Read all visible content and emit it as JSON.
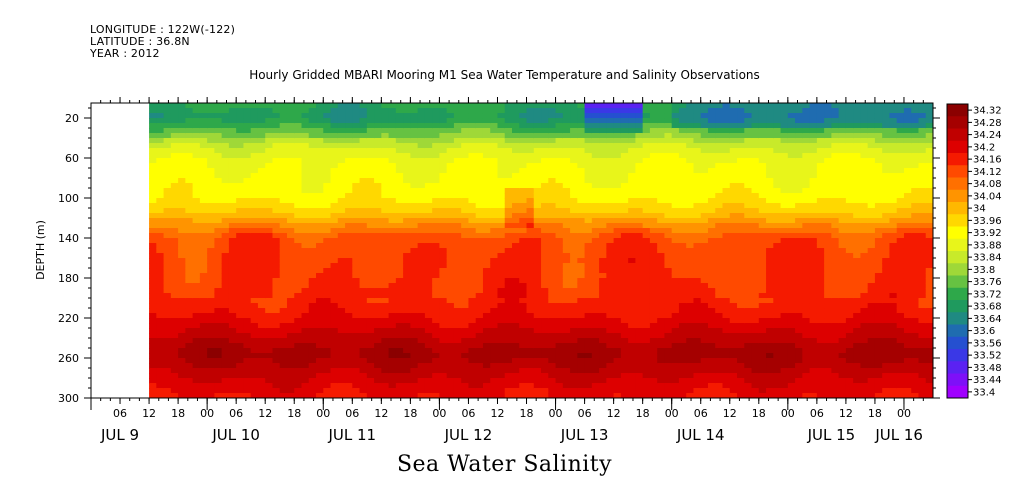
{
  "header": {
    "longitude": "LONGITUDE : 122W(-122)",
    "latitude": "LATITUDE : 36.8N",
    "year": "YEAR : 2012"
  },
  "chart_title": "Hourly Gridded MBARI Mooring M1 Sea Water Temperature and Salinity Observations",
  "bottom_title": "Sea Water Salinity",
  "chart_data": {
    "type": "heatmap",
    "title": "Hourly Gridded MBARI Mooring M1 Sea Water Temperature and Salinity Observations",
    "xlabel": "",
    "ylabel": "DEPTH (m)",
    "variable": "Sea Water Salinity",
    "x_range_hours": [
      0,
      174
    ],
    "y_range": [
      300,
      5
    ],
    "y_ticks": [
      20,
      60,
      100,
      140,
      180,
      220,
      260,
      300
    ],
    "x_hour_ticks": [
      {
        "h": 6,
        "label": "06"
      },
      {
        "h": 12,
        "label": "12"
      },
      {
        "h": 18,
        "label": "18"
      },
      {
        "h": 24,
        "label": "00"
      },
      {
        "h": 30,
        "label": "06"
      },
      {
        "h": 36,
        "label": "12"
      },
      {
        "h": 42,
        "label": "18"
      },
      {
        "h": 48,
        "label": "00"
      },
      {
        "h": 54,
        "label": "06"
      },
      {
        "h": 60,
        "label": "12"
      },
      {
        "h": 66,
        "label": "18"
      },
      {
        "h": 72,
        "label": "00"
      },
      {
        "h": 78,
        "label": "06"
      },
      {
        "h": 84,
        "label": "12"
      },
      {
        "h": 90,
        "label": "18"
      },
      {
        "h": 96,
        "label": "00"
      },
      {
        "h": 102,
        "label": "06"
      },
      {
        "h": 108,
        "label": "12"
      },
      {
        "h": 114,
        "label": "18"
      },
      {
        "h": 120,
        "label": "00"
      },
      {
        "h": 126,
        "label": "06"
      },
      {
        "h": 132,
        "label": "12"
      },
      {
        "h": 138,
        "label": "18"
      },
      {
        "h": 144,
        "label": "00"
      },
      {
        "h": 150,
        "label": "06"
      },
      {
        "h": 156,
        "label": "12"
      },
      {
        "h": 162,
        "label": "18"
      },
      {
        "h": 168,
        "label": "00"
      }
    ],
    "x_day_labels": [
      {
        "h": 6,
        "label": "JUL  9"
      },
      {
        "h": 30,
        "label": "JUL 10"
      },
      {
        "h": 54,
        "label": "JUL 11"
      },
      {
        "h": 78,
        "label": "JUL 12"
      },
      {
        "h": 102,
        "label": "JUL 13"
      },
      {
        "h": 126,
        "label": "JUL 14"
      },
      {
        "h": 153,
        "label": "JUL 15"
      },
      {
        "h": 167,
        "label": "JUL 16"
      }
    ],
    "data_start_hour": 12,
    "colorbar_levels": [
      34.32,
      34.28,
      34.24,
      34.2,
      34.16,
      34.12,
      34.08,
      34.04,
      34,
      33.96,
      33.92,
      33.88,
      33.84,
      33.8,
      33.76,
      33.72,
      33.68,
      33.64,
      33.6,
      33.56,
      33.52,
      33.48,
      33.44,
      33.4
    ],
    "colorbar_labels": [
      "34.32",
      "34.28",
      "34.24",
      "34.2",
      "34.16",
      "34.12",
      "34.08",
      "34.04",
      "34",
      "33.96",
      "33.92",
      "33.88",
      "33.84",
      "33.8",
      "33.76",
      "33.72",
      "33.68",
      "33.64",
      "33.6",
      "33.56",
      "33.52",
      "33.48",
      "33.44",
      "33.4"
    ],
    "colorbar_colors": [
      "#8b0000",
      "#a50000",
      "#c00000",
      "#dd0000",
      "#f51a00",
      "#ff4a00",
      "#ff7000",
      "#ff9400",
      "#ffb800",
      "#ffd800",
      "#ffff00",
      "#e8f51a",
      "#c8ea2a",
      "#9fd838",
      "#66c242",
      "#2ea84a",
      "#1f9a5e",
      "#1f8a82",
      "#1f6cb0",
      "#2550d0",
      "#3a38e6",
      "#5b22f2",
      "#7e10f8",
      "#a000ff"
    ],
    "depth_profile": [
      {
        "depth": 5,
        "value": 33.74
      },
      {
        "depth": 20,
        "value": 33.71
      },
      {
        "depth": 35,
        "value": 33.8
      },
      {
        "depth": 50,
        "value": 33.88
      },
      {
        "depth": 65,
        "value": 33.92
      },
      {
        "depth": 80,
        "value": 33.93
      },
      {
        "depth": 100,
        "value": 33.95
      },
      {
        "depth": 115,
        "value": 34.0
      },
      {
        "depth": 125,
        "value": 34.06
      },
      {
        "depth": 140,
        "value": 34.14
      },
      {
        "depth": 160,
        "value": 34.16
      },
      {
        "depth": 180,
        "value": 34.16
      },
      {
        "depth": 200,
        "value": 34.17
      },
      {
        "depth": 215,
        "value": 34.19
      },
      {
        "depth": 230,
        "value": 34.23
      },
      {
        "depth": 245,
        "value": 34.27
      },
      {
        "depth": 255,
        "value": 34.3
      },
      {
        "depth": 265,
        "value": 34.28
      },
      {
        "depth": 280,
        "value": 34.24
      },
      {
        "depth": 300,
        "value": 34.2
      }
    ],
    "surface_fresh_event": {
      "start_hour": 102,
      "end_hour": 114,
      "min_value": 33.46
    }
  }
}
